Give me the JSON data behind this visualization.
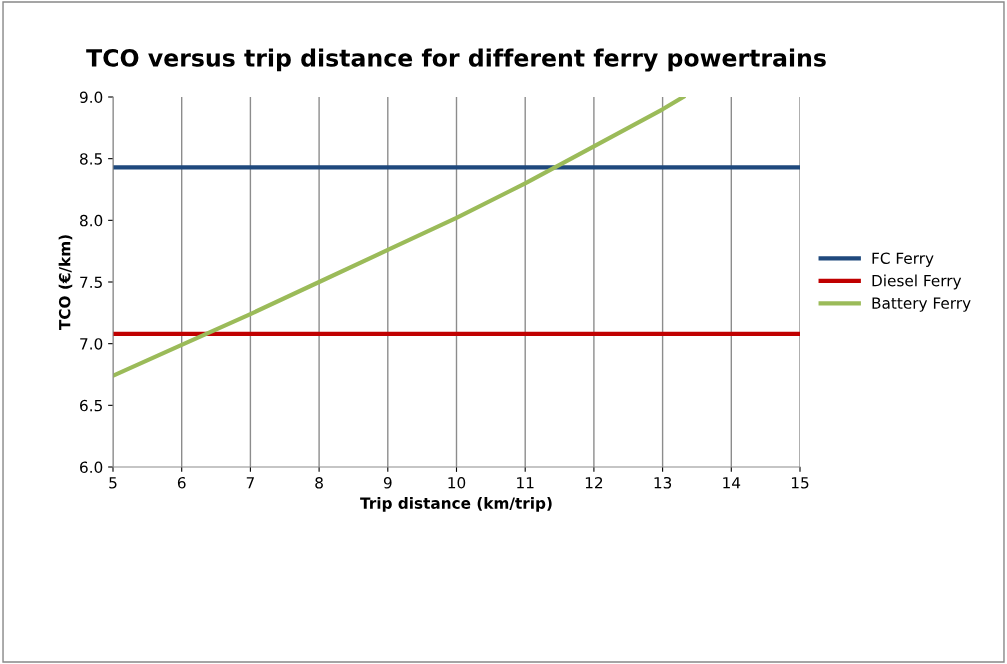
{
  "chart_data": {
    "type": "line",
    "title": "TCO versus trip distance for different ferry powertrains",
    "xlabel": "Trip distance (km/trip)",
    "ylabel": "TCO (€/km)",
    "series": [
      {
        "name": "FC Ferry",
        "color": "#1f497d",
        "x": [
          5,
          15
        ],
        "values": [
          8.43,
          8.43
        ]
      },
      {
        "name": "Diesel Ferry",
        "color": "#c00000",
        "x": [
          5,
          15
        ],
        "values": [
          7.08,
          7.08
        ]
      },
      {
        "name": "Battery Ferry",
        "color": "#9bbb59",
        "x": [
          5,
          6,
          7,
          8,
          9,
          10,
          11,
          12,
          13,
          13.3
        ],
        "values": [
          6.74,
          6.99,
          7.24,
          7.5,
          7.76,
          8.02,
          8.3,
          8.6,
          8.9,
          9.0
        ]
      }
    ],
    "xlim": [
      5,
      15
    ],
    "xticks": [
      5,
      6,
      7,
      8,
      9,
      10,
      11,
      12,
      13,
      14,
      15
    ],
    "ylim": [
      6.0,
      9.0
    ],
    "yticks": [
      {
        "value": 6,
        "label": "6.0"
      },
      {
        "value": 6.5,
        "label": "6.5"
      },
      {
        "value": 7,
        "label": "7.0"
      },
      {
        "value": 7.5,
        "label": "7.5"
      },
      {
        "value": 8,
        "label": "8.0"
      },
      {
        "value": 8.5,
        "label": "8.5"
      },
      {
        "value": 9,
        "label": "9.0"
      }
    ],
    "grid": "x",
    "legend": "right",
    "marker": "none",
    "line_style": "solid"
  }
}
